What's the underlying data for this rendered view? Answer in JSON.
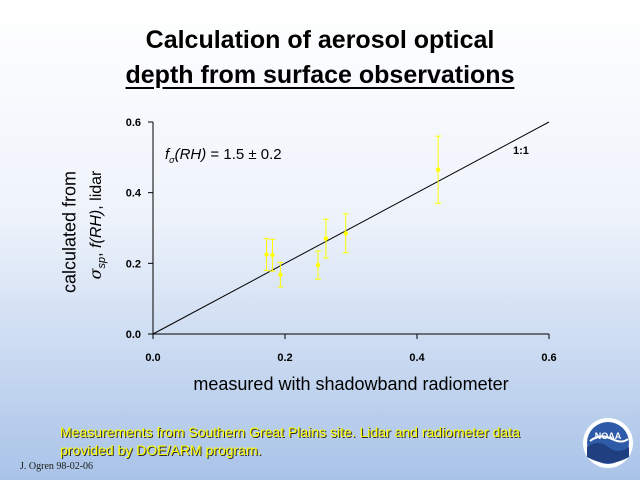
{
  "title_line1": "Calculation of aerosol optical",
  "title_line2": "depth from surface observations",
  "ylabel": {
    "line1": "calculated from",
    "sigma": "σ",
    "sub": "sp",
    "mid": ", ",
    "func": "f(RH)",
    "tail": ", lidar"
  },
  "xlabel": "measured with shadowband radiometer",
  "annotation": {
    "f": "f",
    "sub": "σ",
    "rest": "(RH)",
    "value": " = 1.5 ± 0.2"
  },
  "ratio_label": "1:1",
  "caption": "Measurements from Southern Great Plains site.  Lidar and radiometer data provided by DOE/ARM program.",
  "credit": "J. Ogren 98-02-06",
  "logo_text": "NOAA",
  "colors": {
    "points": "#ffff00",
    "line": "#000000",
    "caption": "#ffff00"
  },
  "chart_data": {
    "type": "scatter",
    "xlim": [
      0.0,
      0.6
    ],
    "ylim": [
      0.0,
      0.6
    ],
    "x_ticks": [
      "0.0",
      "0.2",
      "0.4",
      "0.6"
    ],
    "y_ticks": [
      "0.0",
      "0.2",
      "0.4",
      "0.6"
    ],
    "grid": false,
    "points": [
      {
        "x": 0.172,
        "y": 0.225,
        "err": 0.045
      },
      {
        "x": 0.181,
        "y": 0.223,
        "err": 0.045
      },
      {
        "x": 0.193,
        "y": 0.168,
        "err": 0.035
      },
      {
        "x": 0.25,
        "y": 0.195,
        "err": 0.04
      },
      {
        "x": 0.262,
        "y": 0.27,
        "err": 0.055
      },
      {
        "x": 0.292,
        "y": 0.285,
        "err": 0.055
      },
      {
        "x": 0.432,
        "y": 0.465,
        "err": 0.095
      }
    ],
    "reference_line": {
      "label": "1:1",
      "from": [
        0.0,
        0.0
      ],
      "to": [
        0.6,
        0.6
      ]
    }
  }
}
